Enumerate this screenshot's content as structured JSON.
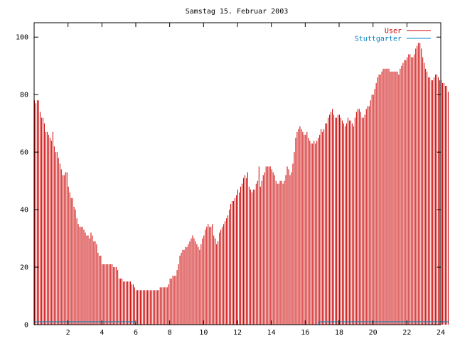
{
  "chart_data": {
    "type": "bar",
    "title": "Samstag 15. Februar 2003",
    "xlabel": "",
    "ylabel": "",
    "xlim": [
      0,
      24
    ],
    "ylim": [
      0,
      105
    ],
    "x_ticks": [
      2,
      4,
      6,
      8,
      10,
      12,
      14,
      16,
      18,
      20,
      22,
      24
    ],
    "y_ticks": [
      0,
      20,
      40,
      60,
      80,
      100
    ],
    "x_tick_labels": [
      "2",
      "4",
      "6",
      "8",
      "10",
      "12",
      "14",
      "16",
      "18",
      "20",
      "22",
      "24"
    ],
    "y_tick_labels": [
      "0",
      "20",
      "40",
      "60",
      "80",
      "100"
    ],
    "grid": false,
    "legend_position": "top-right",
    "series": [
      {
        "name": "User",
        "color": "#cc0000",
        "interval_minutes": 5,
        "values": [
          78,
          77,
          78,
          78,
          74,
          72,
          72,
          70,
          67,
          67,
          66,
          65,
          64,
          67,
          62,
          60,
          60,
          58,
          56,
          54,
          52,
          52,
          53,
          53,
          48,
          46,
          44,
          44,
          41,
          40,
          37,
          35,
          34,
          34,
          34,
          33,
          32,
          31,
          31,
          30,
          32,
          31,
          29,
          29,
          28,
          25,
          24,
          24,
          21,
          21,
          21,
          21,
          21,
          21,
          21,
          21,
          20,
          20,
          20,
          19,
          16,
          16,
          16,
          15,
          15,
          15,
          15,
          15,
          15,
          14,
          14,
          13,
          12,
          12,
          12,
          12,
          12,
          12,
          12,
          12,
          12,
          12,
          12,
          12,
          12,
          12,
          12,
          12,
          12,
          13,
          13,
          13,
          13,
          13,
          13,
          14,
          16,
          16,
          17,
          17,
          17,
          19,
          21,
          24,
          25,
          26,
          26,
          27,
          27,
          28,
          29,
          30,
          31,
          30,
          29,
          28,
          27,
          26,
          28,
          30,
          31,
          33,
          34,
          35,
          34,
          34,
          35,
          31,
          30,
          28,
          29,
          32,
          33,
          34,
          35,
          36,
          37,
          38,
          40,
          42,
          43,
          43,
          44,
          45,
          47,
          46,
          48,
          49,
          51,
          52,
          51,
          53,
          48,
          47,
          46,
          47,
          47,
          49,
          50,
          55,
          48,
          50,
          52,
          53,
          55,
          55,
          55,
          55,
          54,
          53,
          52,
          50,
          49,
          49,
          50,
          50,
          49,
          50,
          52,
          55,
          54,
          52,
          53,
          56,
          60,
          65,
          67,
          68,
          69,
          68,
          67,
          66,
          66,
          67,
          65,
          64,
          63,
          63,
          64,
          63,
          64,
          65,
          66,
          68,
          67,
          68,
          70,
          70,
          72,
          73,
          74,
          75,
          73,
          72,
          72,
          73,
          73,
          72,
          71,
          70,
          69,
          70,
          72,
          71,
          71,
          70,
          69,
          72,
          74,
          75,
          75,
          74,
          72,
          72,
          73,
          75,
          76,
          76,
          78,
          80,
          80,
          82,
          84,
          86,
          87,
          87,
          88,
          89,
          89,
          89,
          89,
          89,
          88,
          88,
          88,
          88,
          88,
          88,
          87,
          89,
          90,
          91,
          92,
          92,
          93,
          94,
          94,
          93,
          93,
          94,
          96,
          97,
          98,
          98,
          96,
          93,
          91,
          89,
          88,
          86,
          86,
          85,
          85,
          86,
          87,
          87,
          86,
          85,
          85,
          84,
          84,
          83,
          83,
          81
        ]
      },
      {
        "name": "Stuttgarter",
        "color": "#0080c0",
        "interval_minutes": 5,
        "values": [
          1,
          1,
          1,
          1,
          1,
          1,
          1,
          1,
          1,
          1,
          1,
          1,
          1,
          1,
          1,
          1,
          1,
          1,
          1,
          1,
          1,
          1,
          1,
          1,
          1,
          1,
          1,
          1,
          1,
          1,
          1,
          1,
          1,
          1,
          1,
          1,
          1,
          1,
          1,
          1,
          1,
          1,
          1,
          1,
          1,
          1,
          1,
          1,
          1,
          1,
          1,
          1,
          1,
          1,
          1,
          1,
          1,
          1,
          1,
          1,
          1,
          1,
          1,
          1,
          1,
          1,
          1,
          1,
          1,
          1,
          1,
          1,
          0,
          0,
          0,
          0,
          0,
          0,
          0,
          0,
          0,
          0,
          0,
          0,
          0,
          0,
          0,
          0,
          0,
          0,
          0,
          0,
          0,
          0,
          0,
          0,
          0,
          0,
          0,
          0,
          0,
          0,
          0,
          0,
          0,
          0,
          0,
          0,
          0,
          0,
          0,
          0,
          0,
          0,
          0,
          0,
          0,
          0,
          0,
          0,
          0,
          0,
          0,
          0,
          0,
          0,
          0,
          0,
          0,
          0,
          0,
          0,
          0,
          0,
          0,
          0,
          0,
          0,
          0,
          0,
          0,
          0,
          0,
          0,
          0,
          0,
          0,
          0,
          0,
          0,
          0,
          0,
          0,
          0,
          0,
          0,
          0,
          0,
          0,
          0,
          0,
          0,
          0,
          0,
          0,
          0,
          0,
          0,
          0,
          0,
          0,
          0,
          0,
          0,
          0,
          0,
          0,
          0,
          0,
          0,
          0,
          0,
          0,
          0,
          0,
          0,
          0,
          0,
          0,
          0,
          0,
          0,
          0,
          0,
          0,
          0,
          0,
          0,
          0,
          0,
          0,
          0,
          1,
          1,
          1,
          1,
          1,
          1,
          1,
          1,
          1,
          1,
          1,
          1,
          1,
          1,
          1,
          1,
          1,
          1,
          1,
          1,
          1,
          1,
          1,
          1,
          1,
          1,
          1,
          1,
          1,
          1,
          1,
          1,
          1,
          1,
          1,
          1,
          1,
          1,
          1,
          1,
          1,
          1,
          1,
          1,
          1,
          1,
          1,
          1,
          1,
          1,
          1,
          1,
          1,
          1,
          1,
          1,
          1,
          1,
          1,
          1,
          1,
          1,
          1,
          1,
          1,
          1,
          1,
          1,
          1,
          1,
          1,
          1,
          1,
          1,
          1,
          1,
          1,
          1,
          1,
          1,
          1,
          1,
          1,
          1,
          1,
          1,
          1,
          1,
          1,
          1,
          1,
          1,
          1
        ]
      }
    ]
  }
}
